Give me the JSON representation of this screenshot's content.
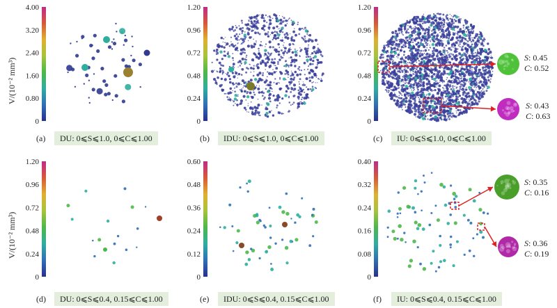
{
  "ylabel": "V/(10⁻² mm³)",
  "panels": [
    {
      "letter": "(a)",
      "caption": "DU: 0⩽S⩽1.0, 0⩽C⩽1.00",
      "ticks": [
        "4.00",
        "3.20",
        "2.40",
        "1.60",
        "0.80",
        "0"
      ],
      "density": 55,
      "spread": 0.8
    },
    {
      "letter": "(b)",
      "caption": "IDU: 0⩽S⩽1.0, 0⩽C⩽1.00",
      "ticks": [
        "1.20",
        "0.96",
        "0.72",
        "0.48",
        "0.24",
        "0"
      ],
      "density": 900,
      "spread": 0.9
    },
    {
      "letter": "(c)",
      "caption": "IU: 0⩽S⩽1.0, 0⩽C⩽1.00",
      "ticks": [
        "1.20",
        "0.96",
        "0.72",
        "0.48",
        "0.24",
        "0"
      ],
      "density": 2600,
      "spread": 0.95
    },
    {
      "letter": "(d)",
      "caption": "DU: 0⩽S⩽0.4, 0.15⩽C⩽1.00",
      "ticks": [
        "1.20",
        "0.96",
        "0.72",
        "0.48",
        "0.24",
        "0"
      ],
      "density": 16,
      "spread": 0.8
    },
    {
      "letter": "(e)",
      "caption": "IDU: 0⩽S⩽0.4, 0.15⩽C⩽1.00",
      "ticks": [
        "0.60",
        "0.48",
        "0.36",
        "0.24",
        "0.12",
        "0"
      ],
      "density": 55,
      "spread": 0.85
    },
    {
      "letter": "(f)",
      "caption": "IU: 0⩽S⩽0.4, 0.15⩽C⩽1.00",
      "ticks": [
        "0.40",
        "0.32",
        "0.24",
        "0.16",
        "0.08",
        "0"
      ],
      "density": 85,
      "spread": 0.9
    }
  ],
  "annotations": [
    {
      "S": "0.45",
      "C": "0.52",
      "color": "#4fc23a"
    },
    {
      "S": "0.43",
      "C": "0.63",
      "color": "#c02cc0"
    },
    {
      "S": "0.35",
      "C": "0.16",
      "color": "#4a9e2a"
    },
    {
      "S": "0.36",
      "C": "0.19",
      "color": "#b02aa8"
    }
  ],
  "colormap": [
    "#2a2f8f",
    "#2f6fb8",
    "#2fae9e",
    "#4cb84a",
    "#a7c43a",
    "#e0b030",
    "#d8583a",
    "#c02a8a"
  ],
  "highlight_color": "#e02020"
}
